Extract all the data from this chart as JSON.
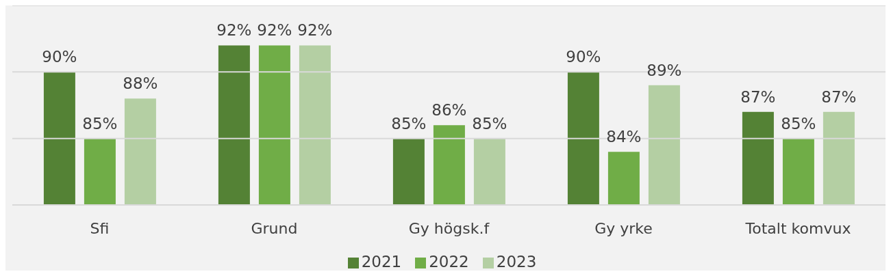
{
  "chart_data": {
    "type": "bar",
    "categories": [
      "Sfi",
      "Grund",
      "Gy  högsk.f",
      "Gy yrke",
      "Totalt komvux"
    ],
    "series": [
      {
        "name": "2021",
        "color": "#548235",
        "values": [
          90,
          92,
          85,
          90,
          87
        ],
        "value_labels": [
          "90%",
          "92%",
          "85%",
          "90%",
          "87%"
        ]
      },
      {
        "name": "2022",
        "color": "#70ad47",
        "values": [
          85,
          92,
          86,
          84,
          85
        ],
        "value_labels": [
          "85%",
          "92%",
          "86%",
          "84%",
          "85%"
        ]
      },
      {
        "name": "2023",
        "color": "#b4cfa3",
        "values": [
          88,
          92,
          85,
          89,
          87
        ],
        "value_labels": [
          "88%",
          "92%",
          "85%",
          "89%",
          "87%"
        ]
      }
    ],
    "ylim": [
      80,
      95
    ],
    "yticks": [
      {
        "value": 80,
        "label": null
      },
      {
        "value": 85,
        "label": null
      },
      {
        "value": 90,
        "label": null
      },
      {
        "value": 95,
        "label": null
      }
    ],
    "tick_labels": "x",
    "grid": "y",
    "legend": "bottom"
  }
}
